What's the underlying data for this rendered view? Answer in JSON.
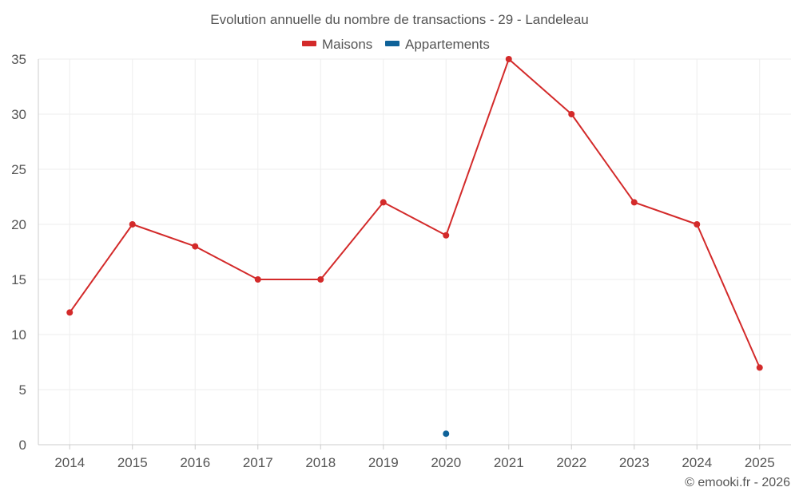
{
  "chart_data": {
    "type": "line",
    "title": "Evolution annuelle du nombre de transactions - 29 - Landeleau",
    "x": [
      "2014",
      "2015",
      "2016",
      "2017",
      "2018",
      "2019",
      "2020",
      "2021",
      "2022",
      "2023",
      "2024",
      "2025"
    ],
    "series": [
      {
        "name": "Maisons",
        "color": "#d32a2a",
        "values": [
          12,
          20,
          18,
          15,
          15,
          22,
          19,
          35,
          30,
          22,
          20,
          7
        ]
      },
      {
        "name": "Appartements",
        "color": "#0f6299",
        "values": [
          null,
          null,
          null,
          null,
          null,
          null,
          1,
          null,
          null,
          null,
          null,
          null
        ]
      }
    ],
    "ylim": [
      0,
      35
    ],
    "yticks": [
      0,
      5,
      10,
      15,
      20,
      25,
      30,
      35
    ],
    "grid": true,
    "legend": "top-center"
  },
  "credit": "© emooki.fr - 2026"
}
